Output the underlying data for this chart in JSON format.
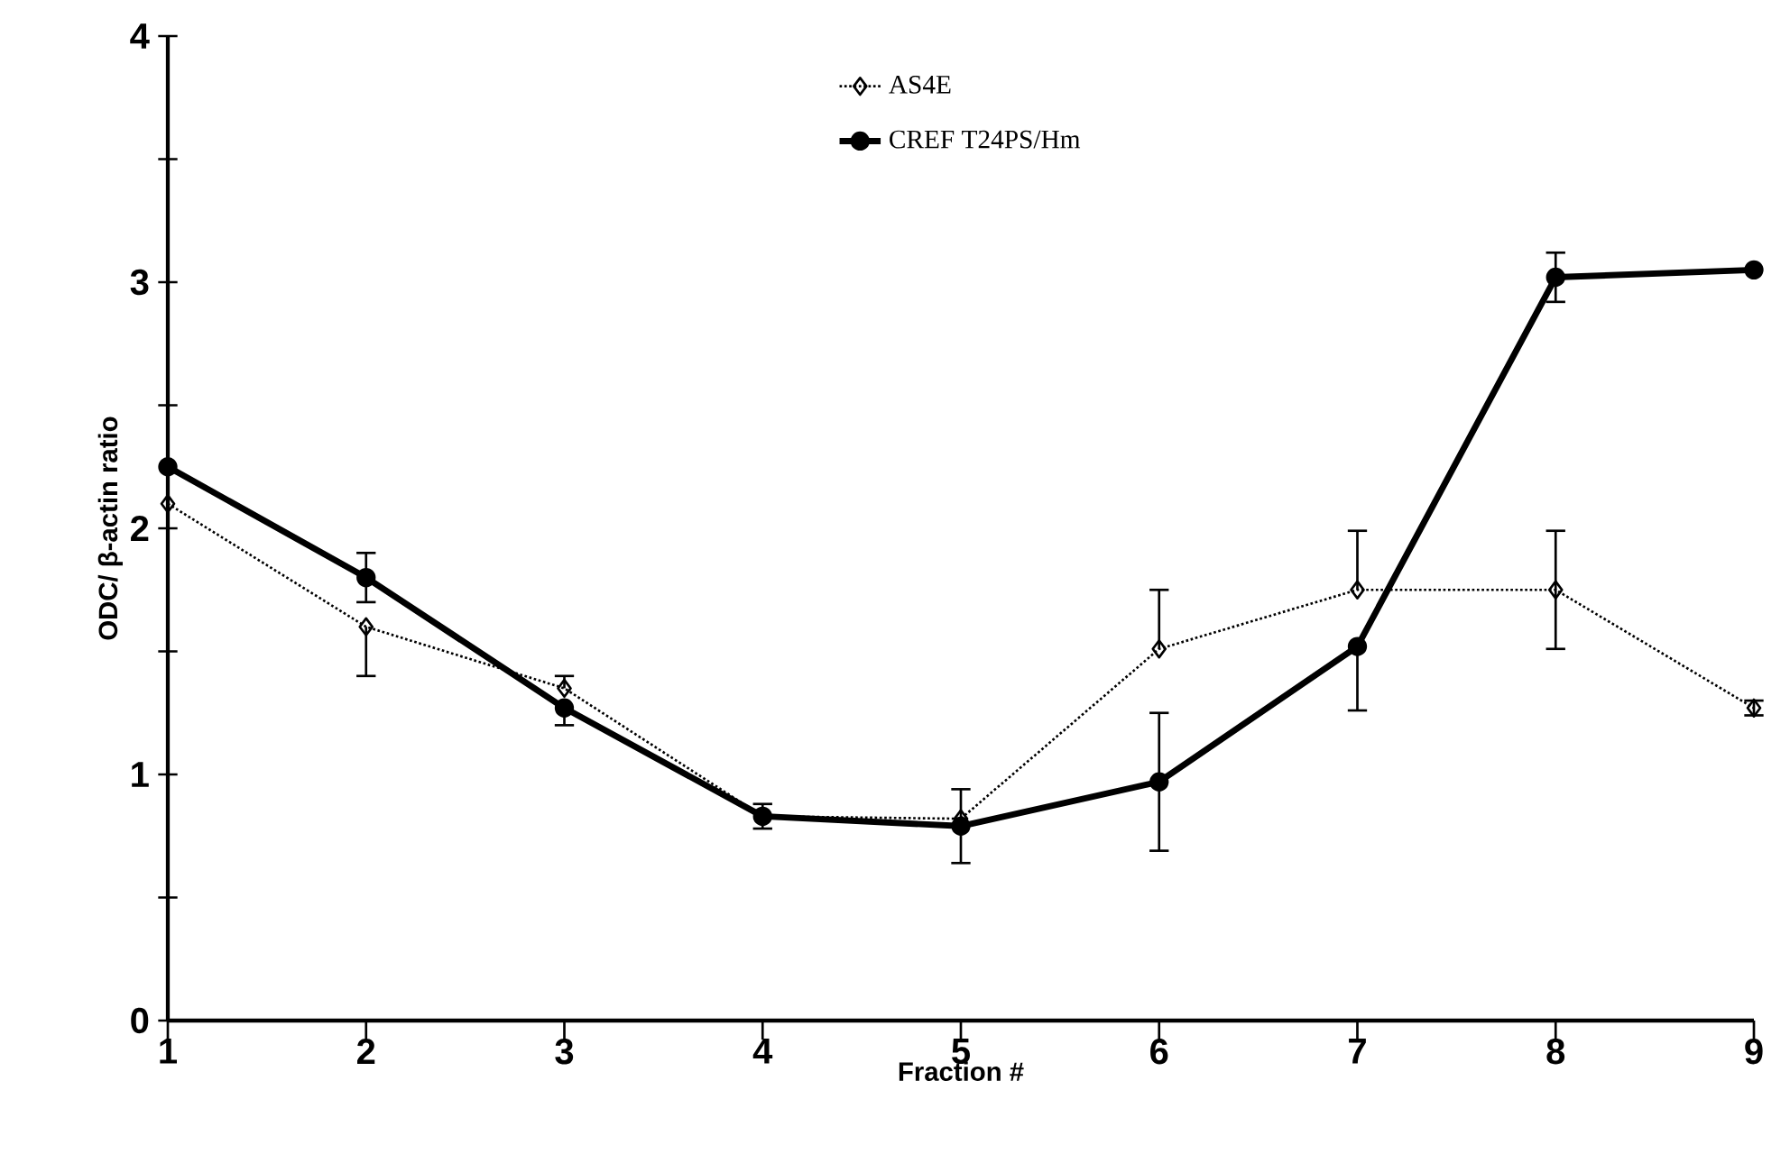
{
  "chart_data": {
    "type": "line",
    "xlabel": "Fraction #",
    "ylabel": "ODC/ β-actin ratio",
    "x": [
      1,
      2,
      3,
      4,
      5,
      6,
      7,
      8,
      9
    ],
    "series": [
      {
        "name": "AS4E",
        "color": "#000000",
        "marker": "diamond",
        "line_style": "dotted",
        "values": [
          2.1,
          1.6,
          1.35,
          0.83,
          0.82,
          1.51,
          1.75,
          1.75,
          1.27
        ],
        "errors": [
          null,
          [
            1.4,
            1.6
          ],
          [
            1.35,
            1.4
          ],
          null,
          null,
          [
            1.51,
            1.75
          ],
          [
            1.75,
            1.99
          ],
          0.24,
          0.03
        ]
      },
      {
        "name": "CREF T24PS/Hm",
        "color": "#000000",
        "marker": "circle",
        "line_style": "solid",
        "values": [
          2.25,
          1.8,
          1.27,
          0.83,
          0.79,
          0.97,
          1.52,
          3.02,
          3.05
        ],
        "errors": [
          null,
          [
            1.7,
            1.9
          ],
          [
            1.2,
            1.27
          ],
          0.05,
          0.15,
          [
            0.69,
            1.25
          ],
          [
            1.26,
            1.52
          ],
          0.1,
          null
        ]
      }
    ],
    "xlim": [
      1,
      9
    ],
    "ylim": [
      0,
      4
    ],
    "xticks": [
      1,
      2,
      3,
      4,
      5,
      6,
      7,
      8,
      9
    ],
    "yticks": [
      0,
      1,
      2,
      3,
      4
    ],
    "grid": false,
    "legend": "top"
  }
}
